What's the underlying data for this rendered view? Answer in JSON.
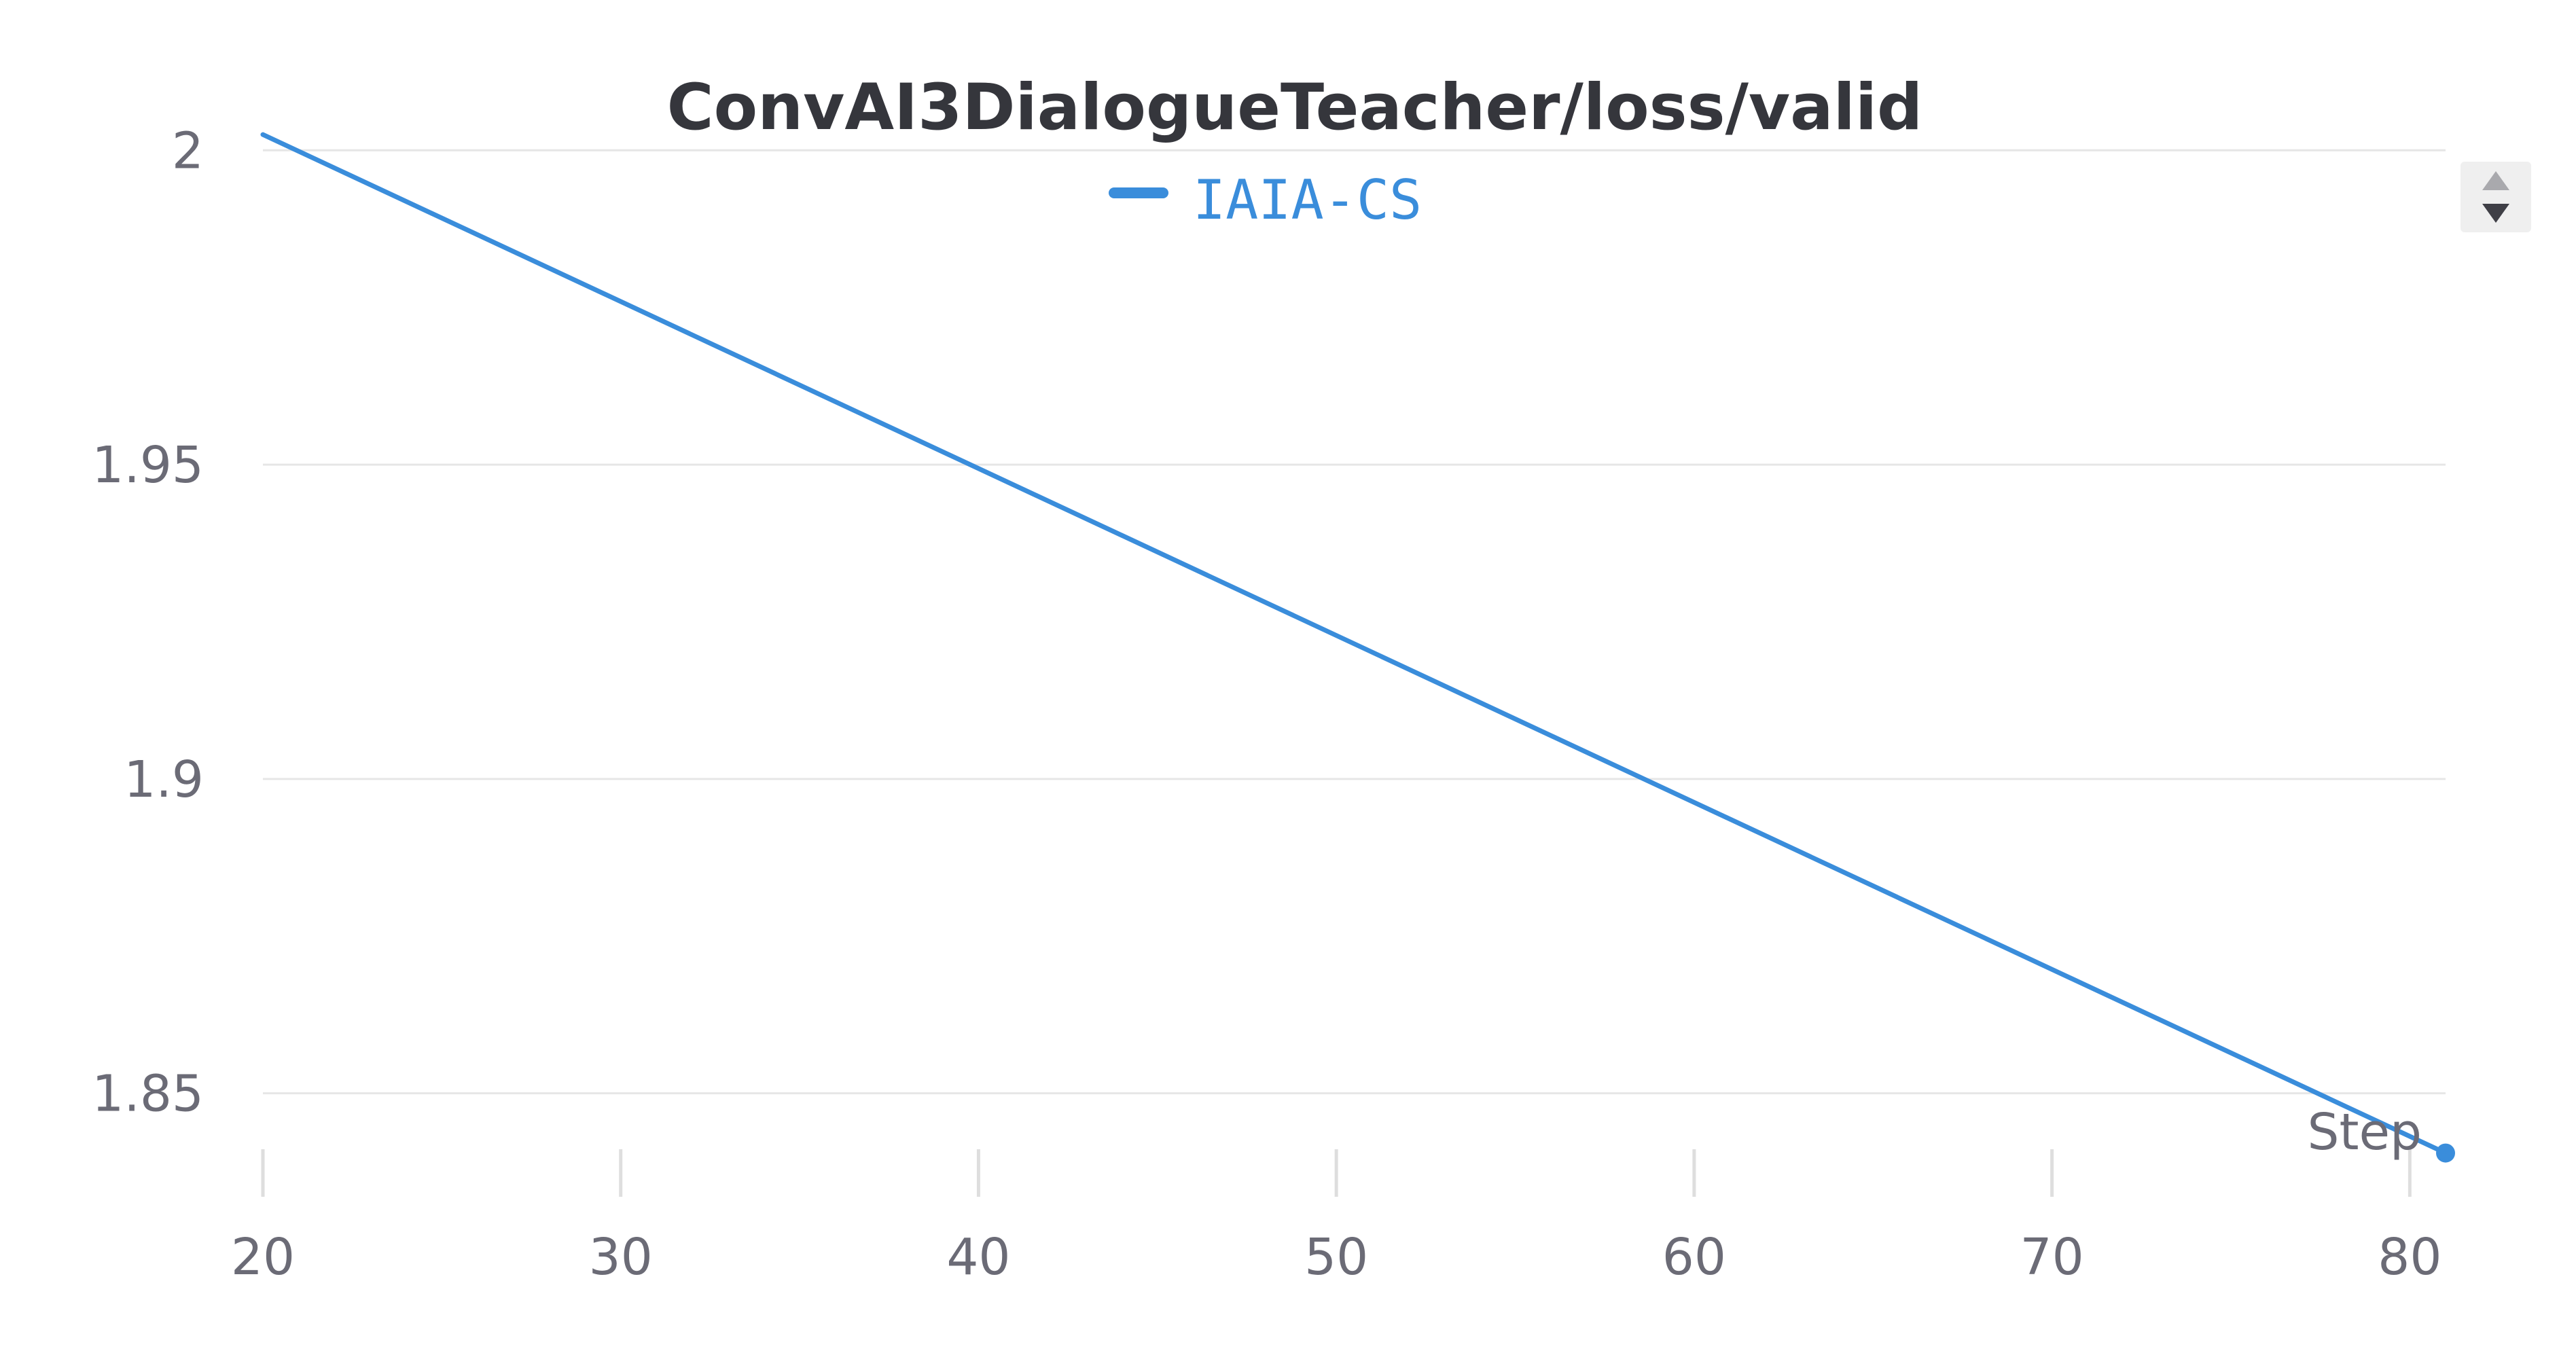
{
  "chart_data": {
    "type": "line",
    "title": "ConvAI3DialogueTeacher/loss/valid",
    "xlabel": "Step",
    "ylabel": "",
    "xlim": [
      20,
      81
    ],
    "ylim": [
      1.837,
      2.005
    ],
    "x_ticks": [
      20,
      30,
      40,
      50,
      60,
      70,
      80
    ],
    "y_ticks": [
      1.85,
      1.9,
      1.95,
      2
    ],
    "x_tick_labels": [
      "20",
      "30",
      "40",
      "50",
      "60",
      "70",
      "80"
    ],
    "y_tick_labels": [
      "1.85",
      "1.9",
      "1.95",
      "2"
    ],
    "grid": true,
    "legend_position": "top-center",
    "series": [
      {
        "name": "IAIA-CS",
        "color": "#3a8ddb",
        "x": [
          20,
          81
        ],
        "y": [
          2.0025,
          1.8405
        ]
      }
    ]
  },
  "controls": {
    "legend_scroll_icon": "up-down-arrows-icon"
  }
}
